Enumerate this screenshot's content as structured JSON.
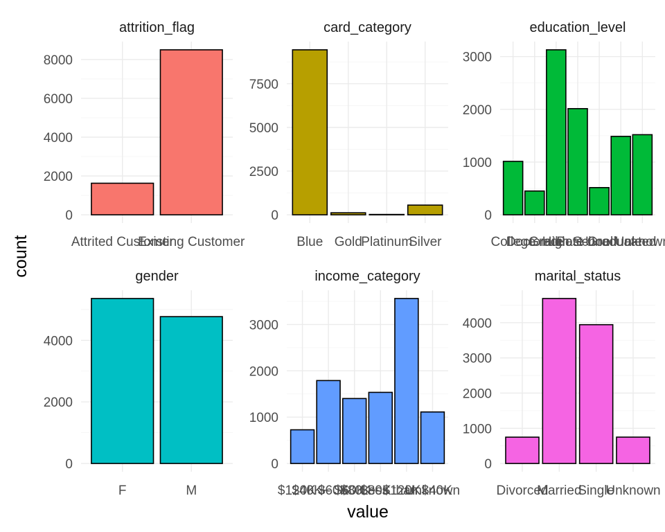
{
  "axes": {
    "xlabel": "value",
    "ylabel": "count"
  },
  "chart_data": [
    {
      "type": "bar",
      "title": "attrition_flag",
      "categories": [
        "Attrited Customer",
        "Existing Customer"
      ],
      "values": [
        1627,
        8500
      ],
      "ylim": [
        0,
        8500
      ],
      "yticks": [
        0,
        2000,
        4000,
        6000,
        8000
      ],
      "color": "#F8766D"
    },
    {
      "type": "bar",
      "title": "card_category",
      "categories": [
        "Blue",
        "Gold",
        "Platinum",
        "Silver"
      ],
      "values": [
        9436,
        116,
        20,
        555
      ],
      "ylim": [
        0,
        9436
      ],
      "yticks": [
        0,
        2500,
        5000,
        7500
      ],
      "color": "#B79F00"
    },
    {
      "type": "bar",
      "title": "education_level",
      "categories": [
        "College",
        "Doctorate",
        "Graduate",
        "High School",
        "Post-Graduate",
        "Uneducated",
        "Unknown"
      ],
      "values": [
        1013,
        451,
        3128,
        2013,
        516,
        1487,
        1519
      ],
      "ylim": [
        0,
        3128
      ],
      "yticks": [
        0,
        1000,
        2000,
        3000
      ],
      "color": "#00BA38"
    },
    {
      "type": "bar",
      "title": "gender",
      "categories": [
        "F",
        "M"
      ],
      "values": [
        5358,
        4769
      ],
      "ylim": [
        0,
        5358
      ],
      "yticks": [
        0,
        2000,
        4000
      ],
      "color": "#00BFC4"
    },
    {
      "type": "bar",
      "title": "income_category",
      "categories": [
        "$120K +",
        "$40K - $60K",
        "$60K - $80K",
        "$80K - $120K",
        "Less than $40K",
        "Unknown"
      ],
      "values": [
        727,
        1790,
        1402,
        1535,
        3561,
        1112
      ],
      "ylim": [
        0,
        3561
      ],
      "yticks": [
        0,
        1000,
        2000,
        3000
      ],
      "color": "#619CFF"
    },
    {
      "type": "bar",
      "title": "marital_status",
      "categories": [
        "Divorced",
        "Married",
        "Single",
        "Unknown"
      ],
      "values": [
        748,
        4687,
        3943,
        749
      ],
      "ylim": [
        0,
        4687
      ],
      "yticks": [
        0,
        1000,
        2000,
        3000,
        4000
      ],
      "color": "#F564E3"
    }
  ]
}
